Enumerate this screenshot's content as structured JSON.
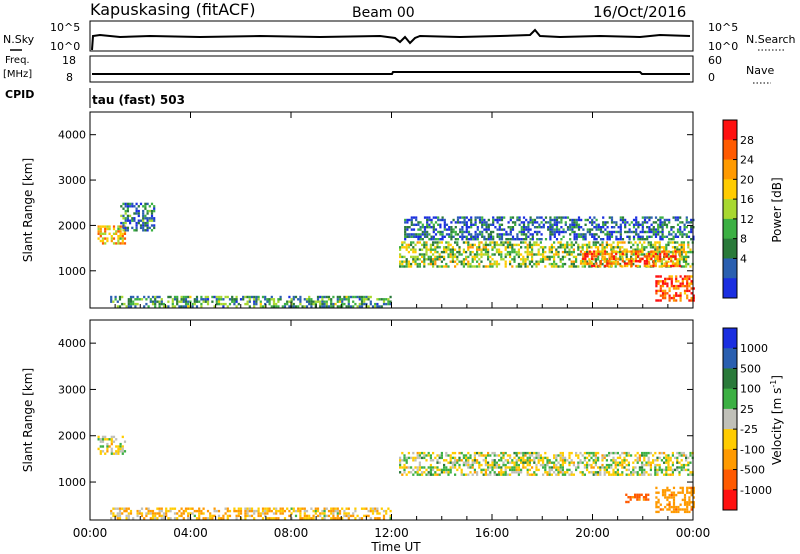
{
  "header": {
    "station": "Kapuskasing (fitACF)",
    "beam": "Beam 00",
    "date": "16/Oct/2016"
  },
  "noise_panel": {
    "left_label": "N.Sky",
    "right_label": "N.Search",
    "tick_top": "10^5",
    "tick_bottom": "10^0"
  },
  "freq_panel": {
    "left_label_1": "Freq.",
    "left_label_2": "[MHz]",
    "left_tick_top": "18",
    "left_tick_bottom": "8",
    "right_label": "Nave",
    "right_tick_top": "60",
    "right_tick_bottom": "0",
    "cpid_label": "CPID",
    "mode_text": "tau (fast) 503"
  },
  "time_axis": {
    "label": "Time UT",
    "ticks": [
      "00:00",
      "04:00",
      "08:00",
      "12:00",
      "16:00",
      "20:00",
      "00:00"
    ]
  },
  "power_panel": {
    "ylabel": "Slant Range [km]",
    "yticks": [
      "4000",
      "3000",
      "2000",
      "1000"
    ],
    "colorbar_label": "Power [dB]",
    "colorbar_ticks": [
      "28",
      "24",
      "20",
      "16",
      "12",
      "8",
      "4"
    ],
    "colorbar_colors": [
      "#ff1010",
      "#ff5a00",
      "#ff9a00",
      "#ffcc00",
      "#a8d830",
      "#3cb043",
      "#2a7a3a",
      "#2a5fb0",
      "#1a2ee0"
    ]
  },
  "velocity_panel": {
    "ylabel": "Slant Range [km]",
    "yticks": [
      "4000",
      "3000",
      "2000",
      "1000"
    ],
    "colorbar_label": "Velocity [m s^-1]",
    "colorbar_ticks": [
      "1000",
      "500",
      "100",
      "25",
      "-25",
      "-100",
      "-500",
      "-1000"
    ],
    "colorbar_colors": [
      "#1a2ee0",
      "#2a5fb0",
      "#2a7a3a",
      "#3cb043",
      "#c0c0b8",
      "#ffcc00",
      "#ff9a00",
      "#ff5a00",
      "#ff1010"
    ]
  },
  "chart_data": {
    "type": "heatmap",
    "x_range_hours_ut": [
      0,
      24
    ],
    "y_range_km": [
      180,
      4500
    ],
    "power_db_range": [
      0,
      30
    ],
    "velocity_range_ms": [
      -1000,
      1000
    ],
    "power_regions": [
      {
        "t": [
          0.3,
          1.4
        ],
        "r": [
          1600,
          2000
        ],
        "power": 20
      },
      {
        "t": [
          1.2,
          2.6
        ],
        "r": [
          1900,
          2500
        ],
        "power": 8
      },
      {
        "t": [
          0.8,
          12.0
        ],
        "r": [
          200,
          450
        ],
        "power": 10
      },
      {
        "t": [
          12.3,
          24.0
        ],
        "r": [
          1100,
          1650
        ],
        "power": 14
      },
      {
        "t": [
          19.5,
          23.5
        ],
        "r": [
          1100,
          1450
        ],
        "power": 24
      },
      {
        "t": [
          22.5,
          24.0
        ],
        "r": [
          350,
          900
        ],
        "power": 26
      },
      {
        "t": [
          12.5,
          24.0
        ],
        "r": [
          1700,
          2200
        ],
        "power": 6
      }
    ],
    "velocity_regions": [
      {
        "t": [
          0.3,
          1.4
        ],
        "r": [
          1600,
          2000
        ],
        "velocity": 0
      },
      {
        "t": [
          0.8,
          12.0
        ],
        "r": [
          200,
          450
        ],
        "velocity": -80
      },
      {
        "t": [
          12.3,
          24.0
        ],
        "r": [
          1150,
          1650
        ],
        "velocity": 0
      },
      {
        "t": [
          22.5,
          24.0
        ],
        "r": [
          350,
          900
        ],
        "velocity": -400
      },
      {
        "t": [
          21.3,
          22.2
        ],
        "r": [
          550,
          750
        ],
        "velocity": -600
      }
    ]
  }
}
